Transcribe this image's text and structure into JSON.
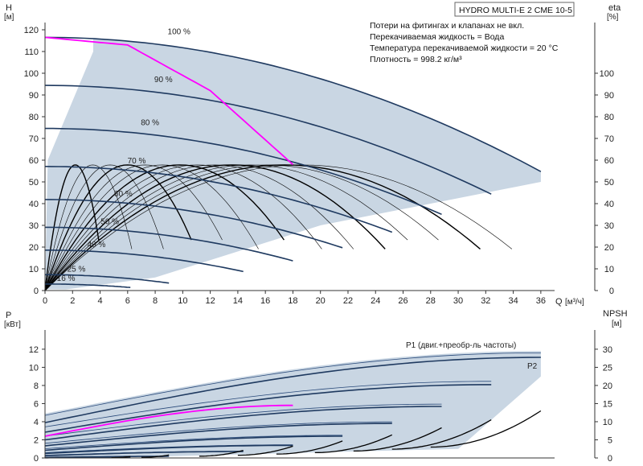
{
  "title": "HYDRO MULTI-E 2 CME 10-5",
  "notes": [
    "Потери на фитингах и клапанах не вкл.",
    "Перекачиваемая жидкость = Вода",
    "Температура перекачиваемой жидкости = 20 °C",
    "Плотность = 998.2 кг/м³"
  ],
  "colors": {
    "envelope": "#c9d6e3",
    "curve": "#1f3a60",
    "highlight": "#ff00ff",
    "eff": "#000000"
  },
  "chart_data": [
    {
      "type": "line",
      "name": "head",
      "ylabel": "H",
      "yunit": "[м]",
      "y2label": "eta",
      "y2unit": "[%]",
      "xlabel": "Q",
      "xunit": "[м³/ч]",
      "xlim": [
        0,
        37
      ],
      "ylim": [
        0,
        130
      ],
      "y2lim": [
        0,
        130
      ],
      "xticks": [
        0,
        2,
        4,
        6,
        8,
        10,
        12,
        14,
        16,
        18,
        20,
        22,
        24,
        26,
        28,
        30,
        32,
        34,
        36
      ],
      "yticks": [
        0,
        10,
        20,
        30,
        40,
        50,
        60,
        70,
        80,
        90,
        100,
        110,
        120
      ],
      "y2ticks": [
        0,
        10,
        20,
        30,
        40,
        50,
        60,
        70,
        80,
        90,
        100
      ],
      "grid": false,
      "speed_curves": [
        {
          "label": "100 %",
          "q_max": 36.0,
          "h0": 116.5
        },
        {
          "label": "90 %",
          "q_max": 32.4,
          "h0": 94.4
        },
        {
          "label": "80 %",
          "q_max": 28.8,
          "h0": 74.6
        },
        {
          "label": "70 %",
          "q_max": 25.2,
          "h0": 57.1
        },
        {
          "label": "60 %",
          "q_max": 21.6,
          "h0": 41.9
        },
        {
          "label": "50 %",
          "q_max": 18.0,
          "h0": 29.1
        },
        {
          "label": "40 %",
          "q_max": 14.4,
          "h0": 18.6
        },
        {
          "label": "25 %",
          "q_max": 9.0,
          "h0": 7.3
        },
        {
          "label": "16 %",
          "q_max": 6.2,
          "h0": 3.0
        }
      ],
      "highlight_curve": {
        "q": [
          0,
          6,
          12,
          18
        ],
        "h": [
          116.5,
          113,
          92,
          58
        ]
      },
      "efficiency_max": 59
    },
    {
      "type": "line",
      "name": "power",
      "ylabel": "P",
      "yunit": "[кВт]",
      "y2label": "NPSH",
      "y2unit": "[м]",
      "xlim": [
        0,
        37
      ],
      "ylim": [
        0,
        13.5
      ],
      "y2lim": [
        0,
        33.75
      ],
      "yticks": [
        0,
        2,
        4,
        6,
        8,
        10,
        12
      ],
      "y2ticks": [
        0,
        5,
        10,
        15,
        20,
        25,
        30
      ],
      "series_labels": [
        "P1 (двиг.+преобр-ль частоты)",
        "P2"
      ],
      "p1_100": {
        "q": [
          0,
          36
        ],
        "p": [
          4.7,
          11.6
        ]
      },
      "p2_100": {
        "q": [
          0,
          36
        ],
        "p": [
          3.9,
          11.1
        ]
      },
      "npsh_100": {
        "q": [
          28,
          36
        ],
        "npsh": [
          3,
          13
        ]
      }
    }
  ]
}
